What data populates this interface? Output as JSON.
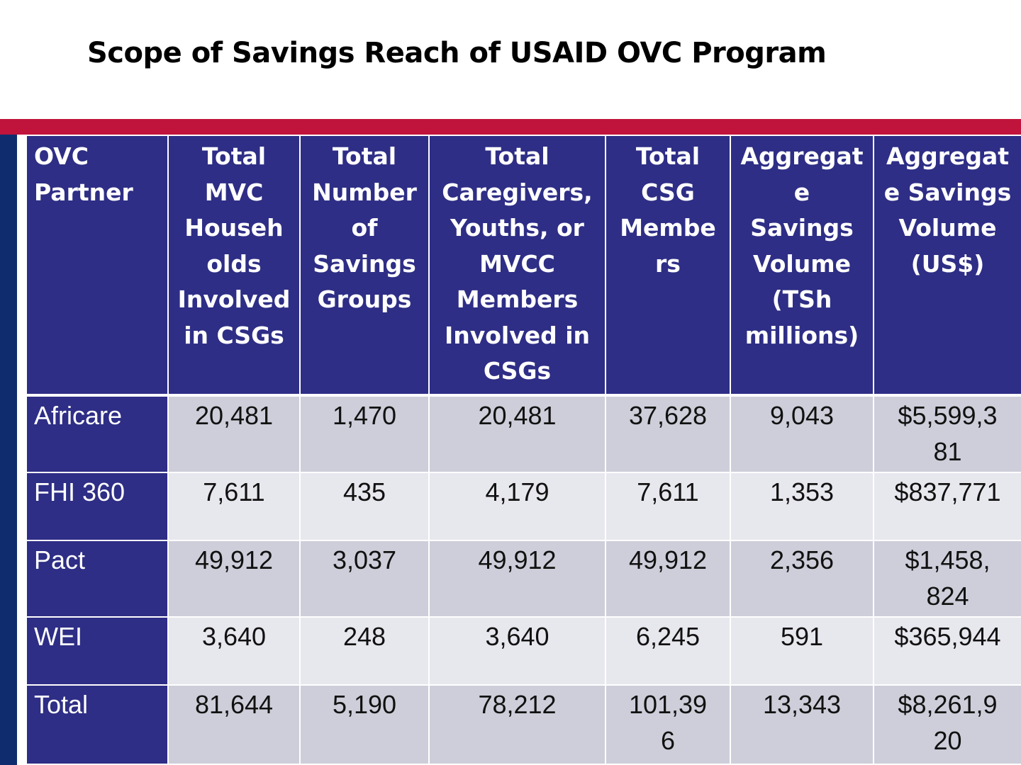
{
  "title": "Scope of Savings Reach of USAID OVC Program",
  "colors": {
    "accent_red": "#C0143C",
    "header_blue": "#2E2E86",
    "stripe_blue": "#0F2D6E",
    "row_dark": "#CDCED9",
    "row_light": "#E7E7EE"
  },
  "table": {
    "headers": [
      [
        "OVC",
        "Partner"
      ],
      [
        "Total",
        "MVC",
        "Househ",
        "olds",
        "Involved",
        "in CSGs"
      ],
      [
        "Total",
        "Number",
        "of",
        "Savings",
        "Groups"
      ],
      [
        "Total",
        "Caregivers,",
        "Youths, or",
        "MVCC",
        "Members",
        "Involved in",
        "CSGs"
      ],
      [
        "Total",
        "CSG",
        "Membe",
        "rs"
      ],
      [
        "Aggregat",
        "e",
        "Savings",
        "Volume",
        "(TSh",
        "millions)"
      ],
      [
        "Aggregat",
        "e Savings",
        "Volume",
        "(US$)"
      ]
    ],
    "rows": [
      {
        "partner": "Africare",
        "cells": [
          [
            "20,481"
          ],
          [
            "1,470"
          ],
          [
            "20,481"
          ],
          [
            "37,628"
          ],
          [
            "9,043"
          ],
          [
            "$5,599,3",
            "81"
          ]
        ]
      },
      {
        "partner": "FHI 360",
        "cells": [
          [
            "7,611"
          ],
          [
            "435"
          ],
          [
            "4,179"
          ],
          [
            "7,611"
          ],
          [
            "1,353"
          ],
          [
            "$837,771"
          ]
        ]
      },
      {
        "partner": "Pact",
        "cells": [
          [
            "49,912"
          ],
          [
            "3,037"
          ],
          [
            "49,912"
          ],
          [
            "49,912"
          ],
          [
            "2,356"
          ],
          [
            "$1,458,",
            "824"
          ]
        ]
      },
      {
        "partner": "WEI",
        "cells": [
          [
            "3,640"
          ],
          [
            "248"
          ],
          [
            "3,640"
          ],
          [
            "6,245"
          ],
          [
            "591"
          ],
          [
            "$365,944"
          ]
        ]
      },
      {
        "partner": "Total",
        "cells": [
          [
            "81,644"
          ],
          [
            "5,190"
          ],
          [
            "78,212"
          ],
          [
            "101,39",
            "6"
          ],
          [
            "13,343"
          ],
          [
            "$8,261,9",
            "20"
          ]
        ]
      }
    ]
  }
}
